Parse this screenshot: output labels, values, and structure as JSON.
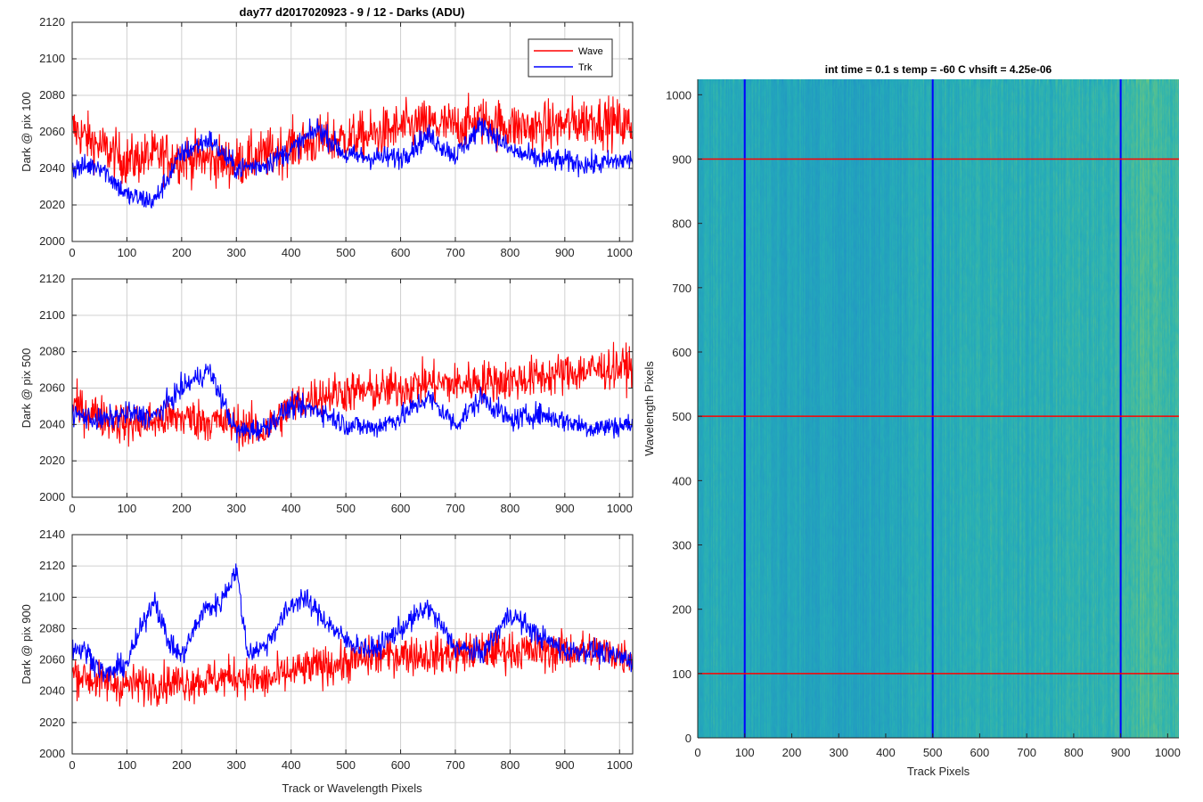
{
  "figure": {
    "title": "day77 d2017020923 - 9 / 12 - Darks (ADU)",
    "shared_xlabel": "Track or Wavelength Pixels"
  },
  "colors": {
    "wave": "#ff0000",
    "trk": "#0000ff",
    "grid": "#d0d0d0",
    "axis": "#262626",
    "heat_base": "#1e90c8",
    "heat_mid": "#28b4b4",
    "heat_high": "#9ed25a"
  },
  "chart_data": [
    {
      "type": "line",
      "ylabel": "Dark @ pix 100",
      "xlim": [
        0,
        1024
      ],
      "ylim": [
        2000,
        2120
      ],
      "xticks": [
        0,
        100,
        200,
        300,
        400,
        500,
        600,
        700,
        800,
        900,
        1000
      ],
      "yticks": [
        2000,
        2020,
        2040,
        2060,
        2080,
        2100,
        2120
      ],
      "grid": true,
      "legend": {
        "placement": "top-right",
        "entries": [
          "Wave",
          "Trk"
        ]
      },
      "series": [
        {
          "name": "Wave",
          "color": "#ff0000",
          "x": [
            0,
            50,
            100,
            150,
            200,
            250,
            300,
            350,
            400,
            450,
            500,
            550,
            600,
            650,
            700,
            750,
            800,
            850,
            900,
            950,
            1024
          ],
          "values": [
            2062,
            2052,
            2044,
            2047,
            2046,
            2045,
            2043,
            2047,
            2052,
            2055,
            2056,
            2058,
            2062,
            2064,
            2063,
            2066,
            2063,
            2062,
            2064,
            2067,
            2063
          ],
          "noise": 13
        },
        {
          "name": "Trk",
          "color": "#0000ff",
          "x": [
            0,
            50,
            100,
            150,
            200,
            250,
            300,
            350,
            400,
            450,
            500,
            550,
            600,
            650,
            700,
            750,
            800,
            850,
            900,
            950,
            1024
          ],
          "values": [
            2040,
            2042,
            2025,
            2022,
            2048,
            2056,
            2040,
            2042,
            2050,
            2062,
            2047,
            2046,
            2046,
            2058,
            2047,
            2064,
            2050,
            2045,
            2044,
            2042,
            2045
          ],
          "noise": 6
        }
      ]
    },
    {
      "type": "line",
      "ylabel": "Dark @ pix 500",
      "xlim": [
        0,
        1024
      ],
      "ylim": [
        2000,
        2120
      ],
      "xticks": [
        0,
        100,
        200,
        300,
        400,
        500,
        600,
        700,
        800,
        900,
        1000
      ],
      "yticks": [
        2000,
        2020,
        2040,
        2060,
        2080,
        2100,
        2120
      ],
      "grid": true,
      "series": [
        {
          "name": "Wave",
          "color": "#ff0000",
          "x": [
            0,
            50,
            100,
            150,
            200,
            250,
            300,
            350,
            400,
            450,
            500,
            550,
            600,
            650,
            700,
            750,
            800,
            850,
            900,
            950,
            1024
          ],
          "values": [
            2050,
            2045,
            2040,
            2042,
            2044,
            2042,
            2040,
            2036,
            2050,
            2056,
            2058,
            2058,
            2060,
            2063,
            2062,
            2064,
            2064,
            2066,
            2068,
            2070,
            2072
          ],
          "noise": 11
        },
        {
          "name": "Trk",
          "color": "#0000ff",
          "x": [
            0,
            50,
            100,
            150,
            200,
            250,
            300,
            350,
            400,
            450,
            500,
            550,
            600,
            650,
            700,
            750,
            800,
            850,
            900,
            950,
            1024
          ],
          "values": [
            2046,
            2042,
            2046,
            2044,
            2060,
            2070,
            2036,
            2038,
            2050,
            2048,
            2040,
            2038,
            2044,
            2055,
            2040,
            2055,
            2042,
            2046,
            2042,
            2038,
            2040
          ],
          "noise": 6
        }
      ]
    },
    {
      "type": "line",
      "ylabel": "Dark @ pix 900",
      "xlim": [
        0,
        1024
      ],
      "ylim": [
        2000,
        2140
      ],
      "xticks": [
        0,
        100,
        200,
        300,
        400,
        500,
        600,
        700,
        800,
        900,
        1000
      ],
      "yticks": [
        2000,
        2020,
        2040,
        2060,
        2080,
        2100,
        2120,
        2140
      ],
      "grid": true,
      "series": [
        {
          "name": "Wave",
          "color": "#ff0000",
          "x": [
            0,
            50,
            100,
            150,
            200,
            250,
            300,
            350,
            400,
            450,
            500,
            550,
            600,
            650,
            700,
            750,
            800,
            850,
            900,
            950,
            1024
          ],
          "values": [
            2052,
            2046,
            2044,
            2045,
            2046,
            2047,
            2050,
            2046,
            2052,
            2056,
            2058,
            2062,
            2064,
            2063,
            2064,
            2066,
            2066,
            2065,
            2066,
            2066,
            2062
          ],
          "noise": 12
        },
        {
          "name": "Trk",
          "color": "#0000ff",
          "x": [
            0,
            25,
            60,
            100,
            150,
            175,
            200,
            240,
            270,
            300,
            320,
            350,
            400,
            420,
            450,
            500,
            550,
            600,
            650,
            700,
            750,
            800,
            850,
            900,
            950,
            1024
          ],
          "values": [
            2068,
            2066,
            2050,
            2058,
            2100,
            2072,
            2062,
            2092,
            2096,
            2118,
            2065,
            2068,
            2095,
            2100,
            2090,
            2072,
            2066,
            2080,
            2094,
            2068,
            2064,
            2090,
            2076,
            2066,
            2066,
            2060
          ],
          "noise": 7
        }
      ]
    },
    {
      "type": "heatmap",
      "title": "int time = 0.1 s   temp = -60 C   vhsift = 4.25e-06",
      "xlabel": "Track Pixels",
      "ylabel": "Wavelength Pixels",
      "xlim": [
        0,
        1024
      ],
      "ylim": [
        0,
        1024
      ],
      "xticks": [
        0,
        100,
        200,
        300,
        400,
        500,
        600,
        700,
        800,
        900,
        1000
      ],
      "yticks": [
        0,
        100,
        200,
        300,
        400,
        500,
        600,
        700,
        800,
        900,
        1000
      ],
      "vertical_lines": {
        "x": [
          100,
          500,
          900
        ],
        "color": "#0000ff"
      },
      "horizontal_lines": {
        "y": [
          100,
          500,
          900
        ],
        "color": "#ff0000"
      },
      "column_level": {
        "x": [
          0,
          100,
          200,
          300,
          400,
          500,
          600,
          700,
          800,
          850,
          900,
          950,
          1024
        ],
        "level": [
          0.3,
          0.25,
          0.15,
          0.1,
          0.15,
          0.3,
          0.4,
          0.35,
          0.5,
          0.45,
          0.55,
          0.75,
          0.65
        ]
      }
    }
  ]
}
